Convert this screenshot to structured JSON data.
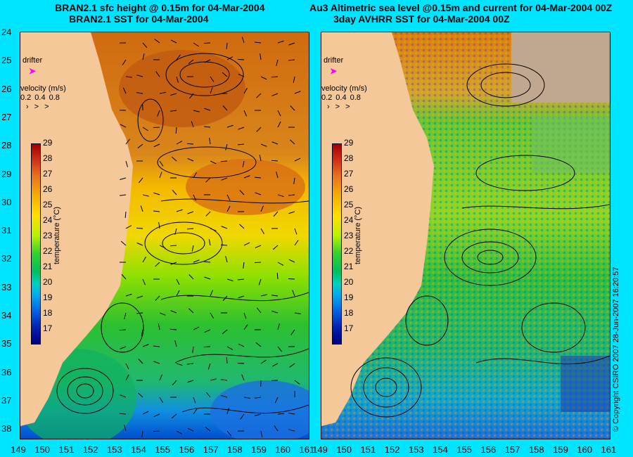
{
  "titles": {
    "left_line1": "BRAN2.1 sfc height @ 0.15m for 04-Mar-2004",
    "left_line2": "BRAN2.1 SST for 04-Mar-2004",
    "right_line1": "Au3 Altimetric sea level  @0.15m and current for 04-Mar-2004 00Z",
    "right_line2": "3day AVHRR SST for 04-Mar-2004 00Z"
  },
  "lat_labels": [
    "24",
    "25",
    "26",
    "27",
    "28",
    "29",
    "30",
    "31",
    "32",
    "33",
    "34",
    "35",
    "36",
    "37",
    "38"
  ],
  "lon_labels": [
    "149",
    "150",
    "151",
    "152",
    "153",
    "154",
    "155",
    "156",
    "157",
    "158",
    "159",
    "160",
    "161"
  ],
  "legend": {
    "drifter": "drifter",
    "velocity_title": "velocity (m/s)",
    "velocity_scale": [
      "0.2",
      "0.4",
      "0.8"
    ],
    "colorbar_ticks": [
      "29",
      "28",
      "27",
      "26",
      "25",
      "24",
      "23",
      "22",
      "21",
      "20",
      "19",
      "18",
      "17"
    ],
    "colorbar_label": "temperature (°C)"
  },
  "copyright": "© Copyright CSIRO 2007   28-Jun-2007 16:20:57",
  "colors": {
    "land": "#f5c89a",
    "warm": "#d87a1c",
    "mid": "#f0d000",
    "cool": "#30c030",
    "cold": "#0090e8",
    "cloud": "#c0a890"
  }
}
